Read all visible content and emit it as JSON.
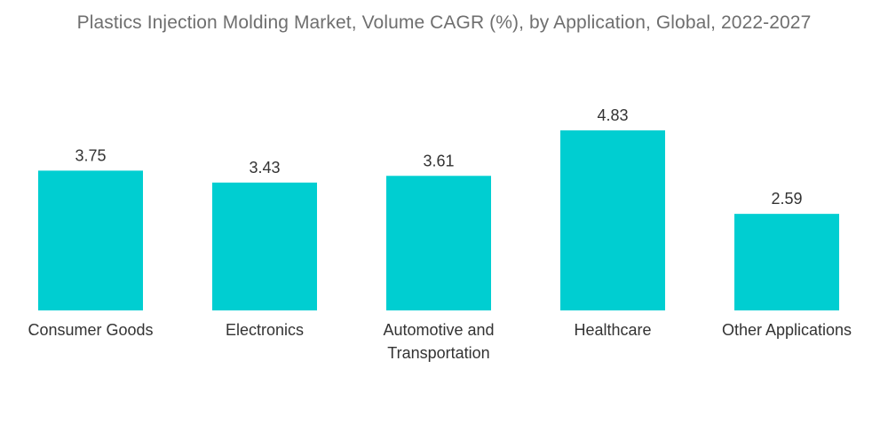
{
  "chart_data": {
    "type": "bar",
    "title": "Plastics Injection Molding Market, Volume CAGR (%), by Application, Global, 2022-2027",
    "categories": [
      "Consumer Goods",
      "Electronics",
      "Automotive and Transportation",
      "Healthcare",
      "Other Applications"
    ],
    "category_lines": [
      [
        "Consumer Goods"
      ],
      [
        "Electronics"
      ],
      [
        "Automotive and",
        "Transportation"
      ],
      [
        "Healthcare"
      ],
      [
        "Other Applications"
      ]
    ],
    "values": [
      3.75,
      3.43,
      3.61,
      4.83,
      2.59
    ],
    "value_labels": [
      "3.75",
      "3.43",
      "3.61",
      "4.83",
      "2.59"
    ],
    "xlabel": "",
    "ylabel": "",
    "ylim": [
      0,
      4.83
    ],
    "grid": false,
    "bar_color": "#00CED1"
  }
}
